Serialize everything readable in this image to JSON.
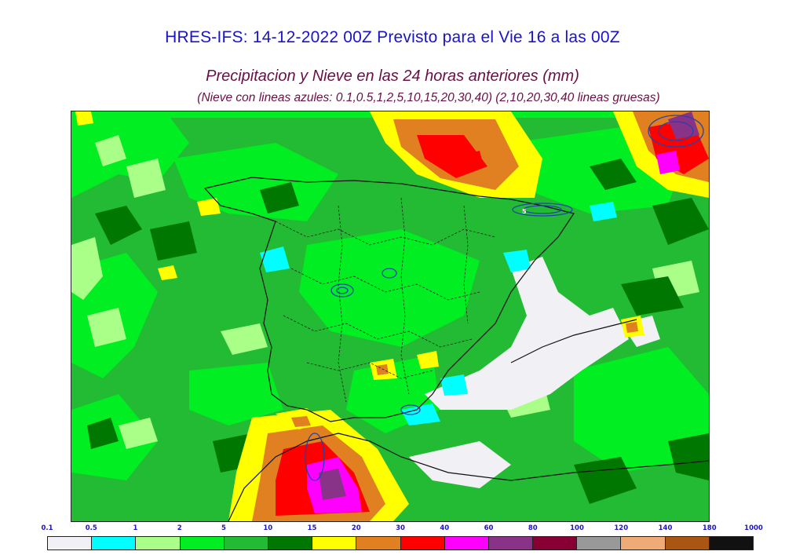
{
  "header": {
    "title": "HRES-IFS: 14-12-2022 00Z Previsto para el Vie 16 a las 00Z",
    "subtitle": "Precipitacion y Nieve en las 24 horas anteriores (mm)",
    "note": "(Nieve con lineas azules: 0.1,0.5,1,2,5,10,15,20,30,40)  (2,10,20,30,40 lineas gruesas)"
  },
  "map": {
    "region": "Peninsula Iberica",
    "snow_marker_label": "5",
    "colors": {
      "base": "#22bb33",
      "light_green": "#00ee22",
      "pale_green": "#aaff88",
      "dark_green": "#007700",
      "cyan": "#00ffff",
      "white": "#f0f0f5",
      "yellow": "#ffff00",
      "orange": "#e08020",
      "red": "#ff0000",
      "magenta": "#ff00ff",
      "purple": "#883388",
      "snow_lines": "#2244aa",
      "borders": "#111111"
    }
  },
  "legend": {
    "labels": [
      "0.1",
      "0.5",
      "1",
      "2",
      "5",
      "10",
      "15",
      "20",
      "30",
      "40",
      "60",
      "80",
      "100",
      "120",
      "140",
      "180",
      "1000"
    ],
    "colors": [
      "#f0f0f5",
      "#00ffff",
      "#aaff88",
      "#00ee22",
      "#22bb33",
      "#007700",
      "#ffff00",
      "#e08020",
      "#ff0000",
      "#ff00ff",
      "#883388",
      "#880033",
      "#999999",
      "#eeaa77",
      "#aa5511",
      "#111111"
    ]
  }
}
